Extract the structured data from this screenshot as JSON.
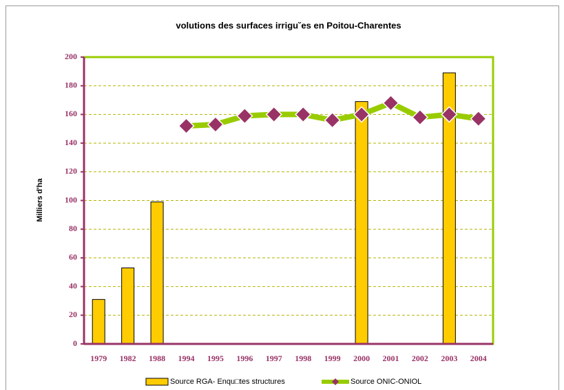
{
  "chart_data": {
    "type": "combo",
    "title": "volutions des surfaces irrigu˘es en Poitou-Charentes",
    "y_label": "Milliers d'ha",
    "categories": [
      "1979",
      "1982",
      "1988",
      "1994",
      "1995",
      "1996",
      "1997",
      "1998",
      "1999",
      "2000",
      "2001",
      "2002",
      "2003",
      "2004"
    ],
    "series": [
      {
        "name": "Source RGA- Enqu□tes structures",
        "type": "bar",
        "color": "#ffcc00",
        "values": [
          31,
          53,
          99,
          null,
          null,
          null,
          null,
          null,
          null,
          169,
          null,
          null,
          189,
          null
        ]
      },
      {
        "name": "Source ONIC-ONIOL",
        "type": "line",
        "color": "#99cc00",
        "marker_color": "#993366",
        "values": [
          null,
          null,
          null,
          152,
          153,
          159,
          160,
          160,
          156,
          160,
          168,
          158,
          160,
          157
        ]
      }
    ],
    "ylim": [
      0,
      200
    ],
    "yticks": [
      0,
      20,
      40,
      60,
      80,
      100,
      120,
      140,
      160,
      180,
      200
    ],
    "grid": true,
    "legend": "bottom"
  }
}
